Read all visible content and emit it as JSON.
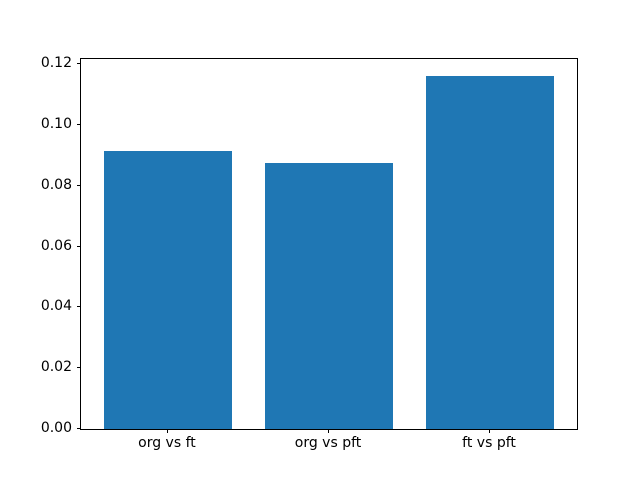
{
  "chart_data": {
    "type": "bar",
    "title": "",
    "xlabel": "",
    "ylabel": "",
    "categories": [
      "org vs ft",
      "org vs pft",
      "ft vs pft"
    ],
    "values": [
      0.0915,
      0.0876,
      0.1162
    ],
    "yticks": [
      {
        "value": 0.0,
        "label": "0.00"
      },
      {
        "value": 0.02,
        "label": "0.02"
      },
      {
        "value": 0.04,
        "label": "0.04"
      },
      {
        "value": 0.06,
        "label": "0.06"
      },
      {
        "value": 0.08,
        "label": "0.08"
      },
      {
        "value": 0.1,
        "label": "0.10"
      },
      {
        "value": 0.12,
        "label": "0.12"
      }
    ],
    "ylim": [
      0,
      0.1218
    ],
    "xlim": [
      -0.54,
      2.54
    ],
    "bar_width": 0.8,
    "grid": false,
    "legend": null
  },
  "colors": {
    "bar": "#1f77b4",
    "axis": "#000000",
    "background": "#ffffff",
    "text": "#000000"
  }
}
